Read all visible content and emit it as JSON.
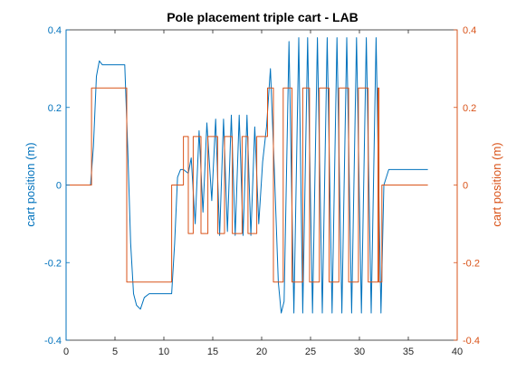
{
  "chart_data": {
    "type": "line",
    "title": "Pole placement triple cart - LAB",
    "xlabel": "",
    "xlim": [
      0,
      40
    ],
    "x_ticks": [
      0,
      5,
      10,
      15,
      20,
      25,
      30,
      35,
      40
    ],
    "x_tick_labels": [
      "0",
      "5",
      "10",
      "15",
      "20",
      "25",
      "30",
      "35",
      "40"
    ],
    "left_axis": {
      "label": "cart position (m)",
      "ylim": [
        -0.4,
        0.4
      ],
      "ticks": [
        -0.4,
        -0.2,
        0,
        0.2,
        0.4
      ],
      "tick_labels": [
        "-0.4",
        "-0.2",
        "0",
        "0.2",
        "0.4"
      ],
      "color": "#0072BD"
    },
    "right_axis": {
      "label": "cart position (m)",
      "ylim": [
        -0.4,
        0.4
      ],
      "ticks": [
        -0.4,
        -0.2,
        0,
        0.2,
        0.4
      ],
      "tick_labels": [
        "-0.4",
        "-0.2",
        "0",
        "0.2",
        "0.4"
      ],
      "color": "#D95319"
    },
    "grid": false,
    "legend": "none",
    "series": [
      {
        "axis": "left",
        "color": "#0072BD",
        "x": [
          0,
          2.5,
          2.8,
          3.1,
          3.4,
          3.7,
          4.0,
          4.5,
          5,
          6,
          6.3,
          6.6,
          6.9,
          7.2,
          7.6,
          8.0,
          8.5,
          9,
          10,
          10.8,
          11.1,
          11.4,
          11.7,
          12.0,
          12.5,
          12.8,
          13.2,
          13.6,
          14.0,
          14.4,
          14.9,
          15.3,
          15.7,
          16.1,
          16.5,
          16.9,
          17.3,
          17.7,
          18.1,
          18.5,
          18.9,
          19.3,
          19.7,
          20.1,
          20.5,
          20.9,
          21.3,
          21.7,
          22.0,
          22.3,
          22.8,
          23.3,
          23.8,
          24.2,
          24.7,
          25.2,
          25.7,
          26.2,
          26.7,
          27.2,
          27.7,
          28.2,
          28.7,
          29.2,
          29.7,
          30.2,
          30.7,
          31.2,
          31.7,
          32.2,
          32.5,
          33,
          37
        ],
        "y": [
          0,
          0,
          0.1,
          0.28,
          0.32,
          0.31,
          0.31,
          0.31,
          0.31,
          0.31,
          0.1,
          -0.15,
          -0.28,
          -0.31,
          -0.32,
          -0.29,
          -0.28,
          -0.28,
          -0.28,
          -0.28,
          -0.15,
          0.02,
          0.04,
          0.04,
          0.03,
          0.07,
          -0.1,
          0.14,
          -0.07,
          0.16,
          -0.04,
          0.17,
          -0.13,
          0.17,
          -0.12,
          0.18,
          -0.13,
          0.18,
          -0.13,
          0.18,
          -0.13,
          0.15,
          -0.1,
          0.06,
          0.15,
          0.3,
          0.04,
          -0.25,
          -0.33,
          -0.3,
          0.37,
          -0.33,
          0.38,
          -0.33,
          0.38,
          -0.33,
          0.38,
          -0.33,
          0.38,
          -0.33,
          0.38,
          -0.33,
          0.38,
          -0.33,
          0.38,
          -0.33,
          0.38,
          -0.33,
          0.38,
          -0.33,
          0.0,
          0.04,
          0.04
        ]
      },
      {
        "axis": "right",
        "color": "#D95319",
        "step": true,
        "x": [
          0,
          2.6,
          6.2,
          10.8,
          12.0,
          12.5,
          13.0,
          13.8,
          14.5,
          15.5,
          16.2,
          17.0,
          18.0,
          18.6,
          19.5,
          20.6,
          21.2,
          22.2,
          23.1,
          24.2,
          24.9,
          25.9,
          26.9,
          27.9,
          28.9,
          29.9,
          30.9,
          31.9,
          32.0,
          32.3,
          37
        ],
        "y": [
          0,
          0.25,
          -0.25,
          0,
          0.125,
          -0.125,
          0.125,
          -0.125,
          0.125,
          -0.125,
          0.125,
          -0.125,
          0.125,
          -0.125,
          0.125,
          0.25,
          -0.25,
          0.25,
          -0.25,
          0.25,
          -0.25,
          0.25,
          -0.25,
          0.25,
          -0.25,
          0.25,
          -0.25,
          0.25,
          -0.25,
          0,
          0
        ]
      }
    ]
  }
}
